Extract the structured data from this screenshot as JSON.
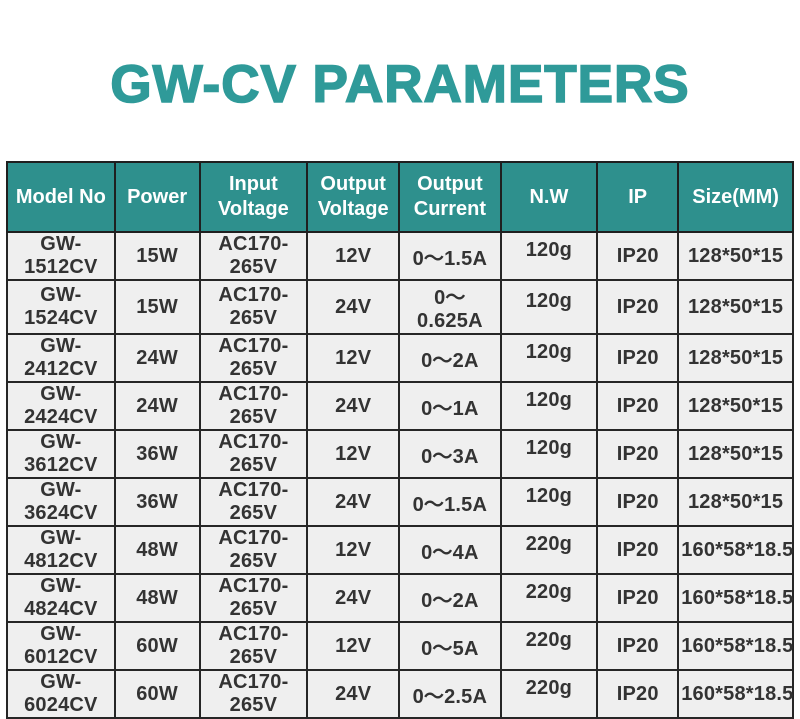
{
  "title": {
    "text": "GW-CV PARAMETERS"
  },
  "colors": {
    "title_teal": "#2F9A99",
    "header_bg_teal": "#2E908D",
    "header_text": "#FFFFFF",
    "row_bg": "#EFEFEF",
    "cell_text": "#333333",
    "grid_border": "#262626"
  },
  "table": {
    "columns": [
      {
        "label": "Model No"
      },
      {
        "label": "Power"
      },
      {
        "label": "Input\nVoltage"
      },
      {
        "label": "Output\nVoltage"
      },
      {
        "label": "Output\nCurrent"
      },
      {
        "label": "N.W"
      },
      {
        "label": "IP"
      },
      {
        "label": "Size(MM)"
      }
    ],
    "rows": [
      [
        "GW-1512CV",
        "15W",
        "AC170-265V",
        "12V",
        "0～1.5A",
        "120g",
        "IP20",
        "128*50*15"
      ],
      [
        "GW-1524CV",
        "15W",
        "AC170-265V",
        "24V",
        "0～0.625A",
        "120g",
        "IP20",
        "128*50*15"
      ],
      [
        "GW-2412CV",
        "24W",
        "AC170-265V",
        "12V",
        "0～2A",
        "120g",
        "IP20",
        "128*50*15"
      ],
      [
        "GW-2424CV",
        "24W",
        "AC170-265V",
        "24V",
        "0～1A",
        "120g",
        "IP20",
        "128*50*15"
      ],
      [
        "GW-3612CV",
        "36W",
        "AC170-265V",
        "12V",
        "0～3A",
        "120g",
        "IP20",
        "128*50*15"
      ],
      [
        "GW-3624CV",
        "36W",
        "AC170-265V",
        "24V",
        "0～1.5A",
        "120g",
        "IP20",
        "128*50*15"
      ],
      [
        "GW-4812CV",
        "48W",
        "AC170-265V",
        "12V",
        "0～4A",
        "220g",
        "IP20",
        "160*58*18.5"
      ],
      [
        "GW-4824CV",
        "48W",
        "AC170-265V",
        "24V",
        "0～2A",
        "220g",
        "IP20",
        "160*58*18.5"
      ],
      [
        "GW-6012CV",
        "60W",
        "AC170-265V",
        "12V",
        "0～5A",
        "220g",
        "IP20",
        "160*58*18.5"
      ],
      [
        "GW-6024CV",
        "60W",
        "AC170-265V",
        "24V",
        "0～2.5A",
        "220g",
        "IP20",
        "160*58*18.5"
      ]
    ]
  }
}
